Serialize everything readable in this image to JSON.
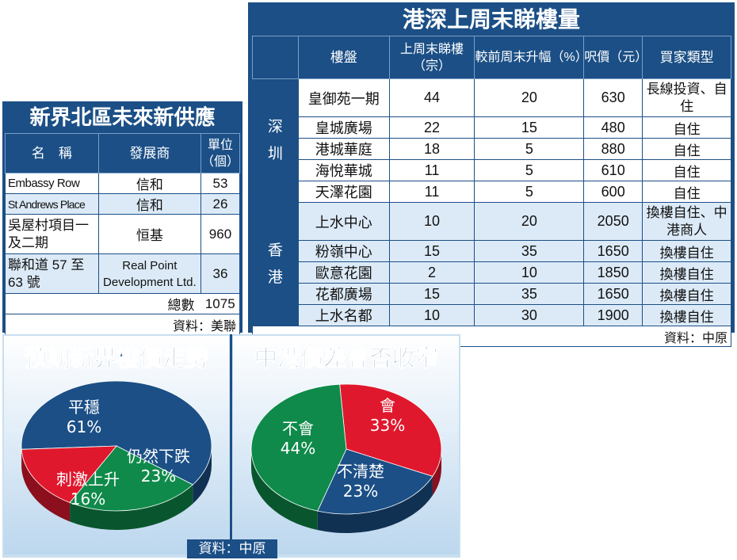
{
  "left_panel": {
    "title": "新界北區未來新供應",
    "headers": [
      "名　稱",
      "發展商",
      "單位（個）"
    ],
    "rows": [
      {
        "name": "Embassy Row",
        "developer": "信和",
        "units": "53"
      },
      {
        "name": "St Andrews Place",
        "developer": "信和",
        "units": "26"
      },
      {
        "name": "吳屋村項目一及二期",
        "developer": "恒基",
        "units": "960"
      },
      {
        "name": "聯和道 57 至 63 號",
        "developer": "Real Point Development Ltd.",
        "units": "36"
      }
    ],
    "total_label": "總數",
    "total_value": "1075",
    "source": "資料：美聯"
  },
  "right_panel": {
    "title": "港深上周末睇樓量",
    "headers": [
      "樓盤",
      "上周末睇樓（宗）",
      "較前周末升幅（%）",
      "呎價（元）",
      "買家類型"
    ],
    "groups": [
      {
        "region": "深圳",
        "rows": [
          {
            "estate": "皇御苑一期",
            "viewings": "44",
            "change": "20",
            "price": "630",
            "buyer": "長線投資、自住"
          },
          {
            "estate": "皇城廣場",
            "viewings": "22",
            "change": "15",
            "price": "480",
            "buyer": "自住"
          },
          {
            "estate": "港城華庭",
            "viewings": "18",
            "change": "5",
            "price": "880",
            "buyer": "自住"
          },
          {
            "estate": "海悅華城",
            "viewings": "11",
            "change": "5",
            "price": "610",
            "buyer": "自住"
          },
          {
            "estate": "天澤花園",
            "viewings": "11",
            "change": "5",
            "price": "600",
            "buyer": "自住"
          }
        ]
      },
      {
        "region": "香港",
        "rows": [
          {
            "estate": "上水中心",
            "viewings": "10",
            "change": "20",
            "price": "2050",
            "buyer": "換樓自住、中港商人"
          },
          {
            "estate": "粉嶺中心",
            "viewings": "15",
            "change": "35",
            "price": "1650",
            "buyer": "換樓自住"
          },
          {
            "estate": "歐意花園",
            "viewings": "2",
            "change": "10",
            "price": "1850",
            "buyer": "換樓自住"
          },
          {
            "estate": "花都廣場",
            "viewings": "15",
            "change": "35",
            "price": "1650",
            "buyer": "換樓自住"
          },
          {
            "estate": "上水名都",
            "viewings": "10",
            "change": "30",
            "price": "1900",
            "buyer": "換樓自住"
          }
        ]
      }
    ],
    "source": "資料：中原"
  },
  "bottom_source": "資料：中原",
  "colors": {
    "blue": "#1b4f86",
    "red": "#e0182d",
    "green": "#0f8a4a",
    "light_blue": "#dceaf7"
  },
  "chart_data": [
    {
      "type": "pie",
      "title": "預期新界樓價走勢",
      "slices": [
        {
          "label": "平穩",
          "value": 61,
          "display": "61%",
          "color": "#1b4f86"
        },
        {
          "label": "仍然下跌",
          "value": 23,
          "display": "23%",
          "color": "#0f8a4a"
        },
        {
          "label": "刺激上升",
          "value": 16,
          "display": "16%",
          "color": "#e0182d"
        }
      ]
    },
    {
      "type": "pie",
      "title": "中港價差會否收窄",
      "slices": [
        {
          "label": "會",
          "value": 33,
          "display": "33%",
          "color": "#e0182d"
        },
        {
          "label": "不清楚",
          "value": 23,
          "display": "23%",
          "color": "#1b4f86"
        },
        {
          "label": "不會",
          "value": 44,
          "display": "44%",
          "color": "#0f8a4a"
        }
      ]
    }
  ]
}
